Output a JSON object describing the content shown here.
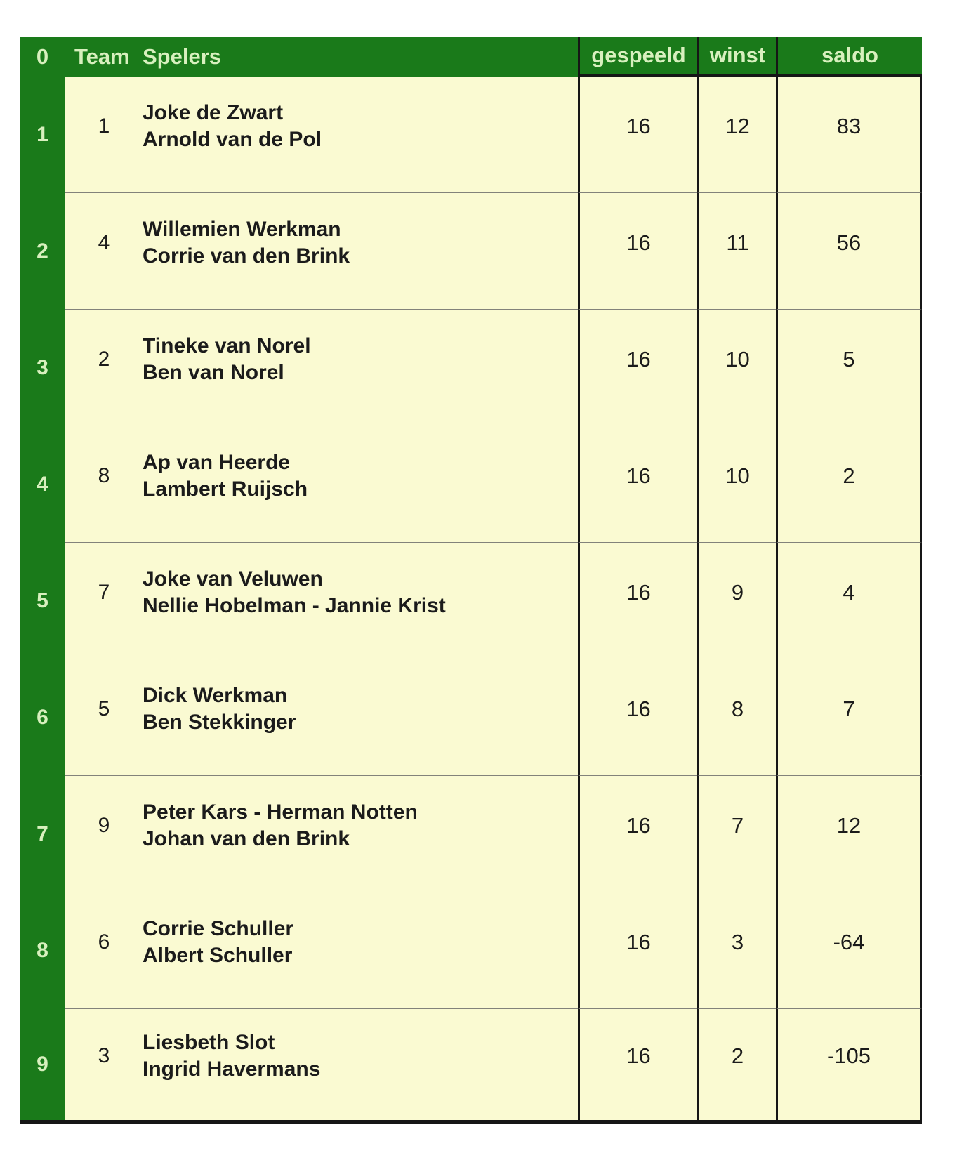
{
  "header": {
    "rank": "0",
    "team": "Team",
    "spelers": "Spelers",
    "gespeeld": "gespeeld",
    "winst": "winst",
    "saldo": "saldo"
  },
  "rows": [
    {
      "rank": "1",
      "team": "1",
      "players": [
        "Joke de Zwart",
        "Arnold van de Pol"
      ],
      "gespeeld": "16",
      "winst": "12",
      "saldo": "83"
    },
    {
      "rank": "2",
      "team": "4",
      "players": [
        "Willemien Werkman",
        "Corrie van den Brink"
      ],
      "gespeeld": "16",
      "winst": "11",
      "saldo": "56"
    },
    {
      "rank": "3",
      "team": "2",
      "players": [
        "Tineke van Norel",
        "Ben van Norel"
      ],
      "gespeeld": "16",
      "winst": "10",
      "saldo": "5"
    },
    {
      "rank": "4",
      "team": "8",
      "players": [
        "Ap van Heerde",
        "Lambert Ruijsch"
      ],
      "gespeeld": "16",
      "winst": "10",
      "saldo": "2"
    },
    {
      "rank": "5",
      "team": "7",
      "players": [
        "Joke van Veluwen",
        "Nellie Hobelman - Jannie Krist"
      ],
      "gespeeld": "16",
      "winst": "9",
      "saldo": "4"
    },
    {
      "rank": "6",
      "team": "5",
      "players": [
        "Dick Werkman",
        "Ben Stekkinger"
      ],
      "gespeeld": "16",
      "winst": "8",
      "saldo": "7"
    },
    {
      "rank": "7",
      "team": "9",
      "players": [
        "Peter Kars - Herman Notten",
        "Johan van den Brink"
      ],
      "gespeeld": "16",
      "winst": "7",
      "saldo": "12"
    },
    {
      "rank": "8",
      "team": "6",
      "players": [
        "Corrie Schuller",
        "Albert Schuller"
      ],
      "gespeeld": "16",
      "winst": "3",
      "saldo": "-64"
    },
    {
      "rank": "9",
      "team": "3",
      "players": [
        "Liesbeth Slot",
        "Ingrid Havermans"
      ],
      "gespeeld": "16",
      "winst": "2",
      "saldo": "-105"
    }
  ],
  "colors": {
    "header_green": "#1a7a1a",
    "cell_cream": "#fafad2",
    "header_text": "#d8f0be",
    "border_black": "#161616",
    "divider_gray": "#82827a",
    "body_text": "#1b1b1b"
  }
}
